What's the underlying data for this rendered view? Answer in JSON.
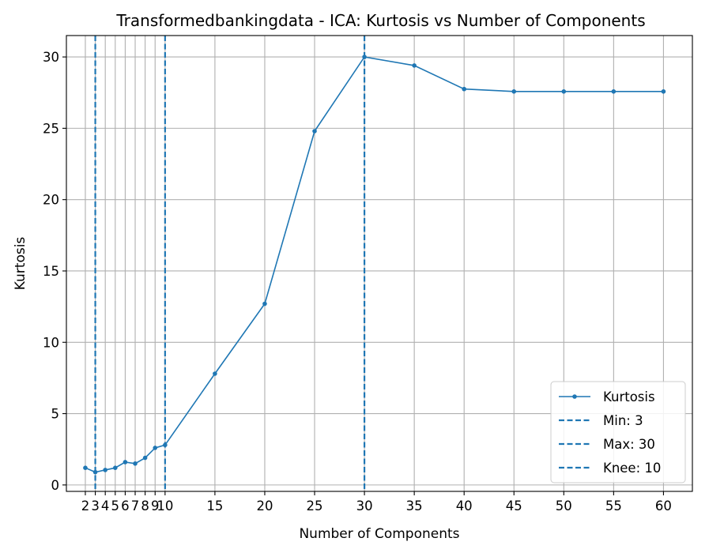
{
  "chart_data": {
    "type": "line",
    "title": "Transformedbankingdata - ICA: Kurtosis vs Number of Components",
    "xlabel": "Number of Components",
    "ylabel": "Kurtosis",
    "xlim": [
      0.1,
      62.9
    ],
    "ylim": [
      -0.45,
      31.5
    ],
    "grid": true,
    "legend_position": "lower-right",
    "x_ticks": [
      2,
      3,
      4,
      5,
      6,
      7,
      8,
      9,
      10,
      15,
      20,
      25,
      30,
      35,
      40,
      45,
      50,
      55,
      60
    ],
    "x_tick_labels": [
      "2",
      "3",
      "4",
      "5",
      "6",
      "7",
      "8",
      "9",
      "10",
      "15",
      "20",
      "25",
      "30",
      "35",
      "40",
      "45",
      "50",
      "55",
      "60"
    ],
    "y_ticks": [
      0,
      5,
      10,
      15,
      20,
      25,
      30
    ],
    "y_tick_labels": [
      "0",
      "5",
      "10",
      "15",
      "20",
      "25",
      "30"
    ],
    "series": [
      {
        "name": "Kurtosis",
        "color": "#1f77b4",
        "x": [
          2,
          3,
          4,
          5,
          6,
          7,
          8,
          9,
          10,
          15,
          20,
          25,
          30,
          35,
          40,
          45,
          50,
          55,
          60
        ],
        "y": [
          1.2,
          0.9,
          1.05,
          1.2,
          1.6,
          1.5,
          1.9,
          2.6,
          2.8,
          7.8,
          12.7,
          24.8,
          30.0,
          29.4,
          27.75,
          27.58,
          27.58,
          27.58,
          27.58
        ]
      }
    ],
    "reference_lines": [
      {
        "name": "Min: 3",
        "x": 3,
        "style": "dashed",
        "color": "#1f77b4"
      },
      {
        "name": "Max: 30",
        "x": 30,
        "style": "dashed",
        "color": "#1f77b4"
      },
      {
        "name": "Knee: 10",
        "x": 10,
        "style": "dashed",
        "color": "#1f77b4"
      }
    ]
  }
}
